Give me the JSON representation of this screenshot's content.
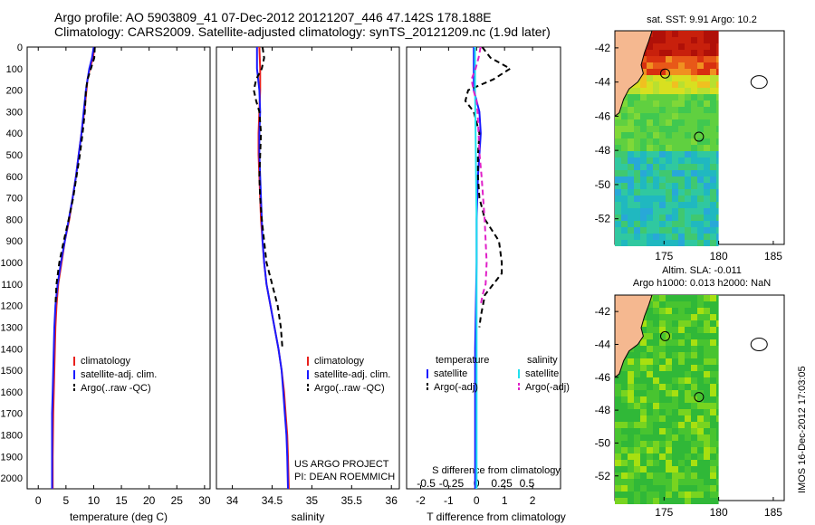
{
  "titles": {
    "line1": "Argo profile: AO 5903809_41 07-Dec-2012 20121207_446 47.142S 178.188E",
    "line2": "Climatology: CARS2009. Satellite-adjusted climatology: synTS_20121209.nc (1.9d later)"
  },
  "side_label": "IMOS 16-Dec-2012 17:03:05",
  "colors": {
    "climatology": "#e8201c",
    "satellite": "#1a1aff",
    "argo": "#000000",
    "sat_salinity": "#22e0ee",
    "argo_salinity": "#e020c8",
    "land": "#f5b890",
    "map_axes_bg": "#ffffff"
  },
  "chart_data": [
    {
      "id": "temperature",
      "type": "line",
      "xlabel": "temperature (deg C)",
      "xlim": [
        -2,
        31
      ],
      "xticks": [
        0,
        5,
        10,
        15,
        20,
        25,
        30
      ],
      "ylim": [
        2050,
        0
      ],
      "yticks": [
        0,
        100,
        200,
        300,
        400,
        500,
        600,
        700,
        800,
        900,
        1000,
        1100,
        1200,
        1300,
        1400,
        1500,
        1600,
        1700,
        1800,
        1900,
        2000
      ],
      "legend": [
        "climatology",
        "satellite-adj. clim.",
        "Argo(..raw -QC)"
      ],
      "series": [
        {
          "name": "climatology",
          "style": "solid",
          "color": "climatology",
          "x": [
            10.1,
            9.9,
            9.3,
            8.9,
            8.7,
            8.3,
            7.8,
            7.3,
            6.8,
            6.2,
            5.6,
            4.8,
            4.2,
            3.6,
            3.3,
            3.1,
            3.0,
            2.9,
            2.8,
            2.7,
            2.6,
            2.6
          ],
          "y": [
            0,
            50,
            100,
            150,
            200,
            300,
            400,
            500,
            600,
            700,
            800,
            900,
            1000,
            1100,
            1200,
            1300,
            1400,
            1500,
            1600,
            1700,
            1900,
            2050
          ]
        },
        {
          "name": "satellite-adj. clim.",
          "style": "solid",
          "color": "satellite",
          "x": [
            10.0,
            9.7,
            9.2,
            8.9,
            8.6,
            8.2,
            7.8,
            7.3,
            6.8,
            6.2,
            5.5,
            4.8,
            4.1,
            3.5,
            3.1,
            2.9,
            2.8,
            2.7,
            2.6,
            2.5,
            2.5,
            2.5
          ],
          "y": [
            0,
            50,
            100,
            150,
            200,
            300,
            400,
            500,
            600,
            700,
            800,
            900,
            1000,
            1100,
            1200,
            1300,
            1400,
            1500,
            1600,
            1700,
            1900,
            2050
          ]
        },
        {
          "name": "Argo(..raw -QC)",
          "style": "dashed",
          "color": "argo",
          "x": [
            10.2,
            10.1,
            9.5,
            8.9,
            8.6,
            8.4,
            8.0,
            7.5,
            6.9,
            6.3,
            5.5,
            4.6,
            3.8,
            3.3,
            3.1
          ],
          "y": [
            0,
            50,
            100,
            150,
            200,
            300,
            400,
            500,
            600,
            700,
            800,
            900,
            1000,
            1100,
            1200
          ]
        }
      ]
    },
    {
      "id": "salinity",
      "type": "line",
      "xlabel": "salinity",
      "xlim": [
        33.8,
        36.1
      ],
      "xticks": [
        34,
        34.5,
        35,
        35.5,
        36
      ],
      "xticklabels": [
        "34",
        "34.5",
        "35",
        "35.5",
        "36"
      ],
      "ylim": [
        2050,
        0
      ],
      "legend": [
        "climatology",
        "satellite-adj. clim.",
        "Argo(..raw -QC)"
      ],
      "annotation": [
        "US ARGO PROJECT",
        "PI: DEAN ROEMMICH"
      ],
      "series": [
        {
          "name": "climatology",
          "style": "solid",
          "color": "climatology",
          "x": [
            34.34,
            34.35,
            34.35,
            34.34,
            34.33,
            34.33,
            34.34,
            34.35,
            34.36,
            34.38,
            34.4,
            34.43,
            34.48,
            34.53,
            34.58,
            34.62,
            34.65,
            34.67,
            34.69,
            34.7,
            34.71
          ],
          "y": [
            0,
            100,
            200,
            300,
            400,
            500,
            600,
            700,
            800,
            900,
            1000,
            1100,
            1200,
            1300,
            1400,
            1500,
            1600,
            1700,
            1800,
            1900,
            2050
          ]
        },
        {
          "name": "satellite-adj. clim.",
          "style": "solid",
          "color": "satellite",
          "x": [
            34.31,
            34.31,
            34.34,
            34.35,
            34.34,
            34.34,
            34.35,
            34.36,
            34.37,
            34.38,
            34.4,
            34.43,
            34.48,
            34.53,
            34.58,
            34.62,
            34.64,
            34.66,
            34.68,
            34.69,
            34.7
          ],
          "y": [
            0,
            100,
            200,
            300,
            400,
            500,
            600,
            700,
            800,
            900,
            1000,
            1100,
            1200,
            1300,
            1400,
            1500,
            1600,
            1700,
            1800,
            1900,
            2050
          ]
        },
        {
          "name": "Argo(..raw -QC)",
          "style": "dashed",
          "color": "argo",
          "x": [
            34.38,
            34.4,
            34.37,
            34.3,
            34.27,
            34.3,
            34.34,
            34.36,
            34.35,
            34.34,
            34.35,
            34.37,
            34.43,
            34.5,
            34.57,
            34.61,
            34.63
          ],
          "y": [
            0,
            50,
            100,
            150,
            200,
            250,
            300,
            400,
            500,
            600,
            700,
            800,
            1000,
            1100,
            1200,
            1300,
            1400
          ]
        }
      ]
    },
    {
      "id": "difference",
      "type": "line",
      "xlabel": "T difference from climatology",
      "xlim": [
        -2.5,
        3
      ],
      "xticks": [
        -2,
        -1,
        0,
        1,
        2
      ],
      "top_axis_label": "S difference from climatology",
      "top_ticks": [
        -0.5,
        -0.25,
        0,
        0.25,
        0.5
      ],
      "top_ticklabels": [
        "-0.5",
        "-0.25",
        "0",
        "0.25",
        "0.5"
      ],
      "ylim": [
        2050,
        0
      ],
      "legend_headers": [
        "temperature",
        "salinity"
      ],
      "legend": [
        "satellite",
        "Argo(-adj)",
        "satellite",
        "Argo(-adj)"
      ],
      "series": [
        {
          "name": "satellite",
          "style": "solid",
          "color": "satellite",
          "x": [
            -0.1,
            -0.1,
            -0.1,
            0.1,
            0.15,
            0.1,
            0.05,
            0.0,
            0.0,
            -0.05,
            -0.05,
            -0.05
          ],
          "y": [
            0,
            100,
            200,
            300,
            400,
            500,
            600,
            800,
            1000,
            1400,
            1800,
            2050
          ]
        },
        {
          "name": "Argo(-adj)",
          "style": "dashed",
          "color": "argo",
          "x": [
            0.2,
            0.5,
            1.2,
            0.6,
            -0.3,
            -0.4,
            -0.1,
            0.1,
            0.05,
            0.05,
            0.1,
            0.3,
            0.8,
            0.9,
            0.9,
            0.3,
            0.15,
            0.1
          ],
          "y": [
            0,
            50,
            100,
            150,
            200,
            250,
            300,
            400,
            500,
            600,
            700,
            800,
            900,
            1000,
            1050,
            1150,
            1250,
            1300
          ]
        },
        {
          "name": "satellite",
          "style": "solid",
          "color": "sat_salinity",
          "x": [
            -0.015,
            -0.015,
            -0.01,
            -0.005,
            0.0,
            0.0,
            0.0,
            0.0,
            0.0,
            0.0
          ],
          "y": [
            0,
            200,
            400,
            600,
            800,
            1000,
            1200,
            1500,
            1800,
            2050
          ]
        }
      ]
    }
  ],
  "maps": [
    {
      "id": "sst-map",
      "title": "sat. SST: 9.91  Argo: 10.2",
      "xticks": [
        "175",
        "180",
        "185"
      ],
      "yticks": [
        "-42",
        "-44",
        "-46",
        "-48",
        "-50",
        "-52"
      ]
    },
    {
      "id": "sla-map",
      "title_line1": "Altim. SLA: -0.011",
      "title_line2": "Argo h1000: 0.013 h2000: NaN",
      "xticks": [
        "175",
        "180",
        "185"
      ],
      "yticks": [
        "-42",
        "-44",
        "-46",
        "-48",
        "-50",
        "-52"
      ]
    }
  ]
}
